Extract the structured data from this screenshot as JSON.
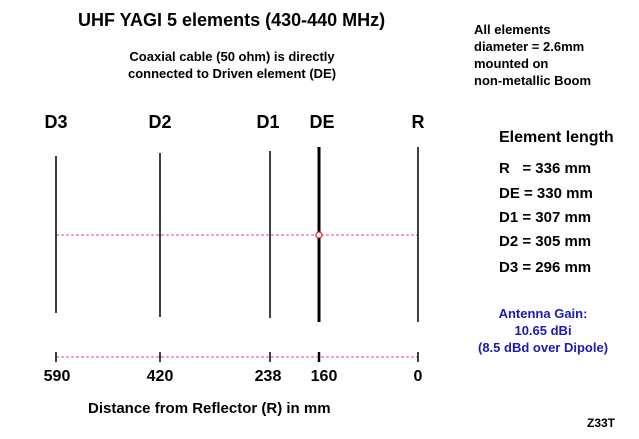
{
  "title": "UHF YAGI 5 elements (430-440 MHz)",
  "subtitle_lines": [
    "Coaxial cable (50 ohm) is directly",
    "connected to Driven element (DE)"
  ],
  "notes_lines": [
    "All elements",
    "diameter = 2.6mm",
    "mounted on",
    "non-metallic Boom"
  ],
  "elements": [
    {
      "label": "D3",
      "distance": "590"
    },
    {
      "label": "D2",
      "distance": "420"
    },
    {
      "label": "D1",
      "distance": "238"
    },
    {
      "label": "DE",
      "distance": "160"
    },
    {
      "label": "R",
      "distance": "0"
    }
  ],
  "element_length": {
    "title": "Element length",
    "rows": [
      "R   = 336 mm",
      "DE = 330 mm",
      "D1 = 307 mm",
      "D2 = 305 mm",
      "D3 = 296 mm"
    ]
  },
  "gain_lines": [
    "Antenna Gain:",
    "10.65 dBi",
    "(8.5 dBd over Dipole)"
  ],
  "axis_title": "Distance from Reflector (R) in mm",
  "code": "Z33T",
  "colors": {
    "dashed_line": "#d846c8",
    "feed_point": "#e02020",
    "gain_text": "#1a1ab8"
  }
}
